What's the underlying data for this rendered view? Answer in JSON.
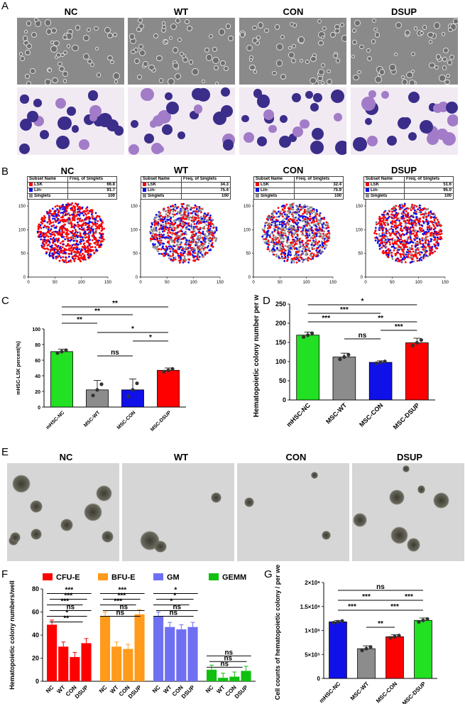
{
  "panel_labels": {
    "A": "A",
    "B": "B",
    "C": "C",
    "D": "D",
    "E": "E",
    "F": "F",
    "G": "G"
  },
  "conditions": [
    "NC",
    "WT",
    "CON",
    "DSUP"
  ],
  "colors": {
    "red": "#ff0000",
    "blue": "#1010e8",
    "gray": "#8c8c8c",
    "green": "#22e022",
    "orange": "#ff9a1a",
    "lavender": "#6f6ff2",
    "gemm_green": "#10c010"
  },
  "flow_tables": [
    {
      "header": [
        "Subset Name",
        "Freq. of Singlets"
      ],
      "rows": [
        [
          "LSK",
          "66.8"
        ],
        [
          "Lin-",
          "91.7"
        ],
        [
          "Singlets",
          "100"
        ]
      ]
    },
    {
      "header": [
        "Subset Name",
        "Freq. of Singlets"
      ],
      "rows": [
        [
          "LSK",
          "34.3"
        ],
        [
          "Lin-",
          "75.4"
        ],
        [
          "Singlets",
          "100"
        ]
      ]
    },
    {
      "header": [
        "Subset Name",
        "Freq. of Singlets"
      ],
      "rows": [
        [
          "LSK",
          "32.4"
        ],
        [
          "Lin-",
          "75.9"
        ],
        [
          "Singlets",
          "100"
        ]
      ]
    },
    {
      "header": [
        "Subset Name",
        "Freq. of Singlets"
      ],
      "rows": [
        [
          "LSK",
          "51.6"
        ],
        [
          "Lin-",
          "95.0"
        ],
        [
          "Singlets",
          "100"
        ]
      ]
    }
  ],
  "chart_data": [
    {
      "type": "bar",
      "panel": "C",
      "categories": [
        "mHSC-NC",
        "MSC-WT",
        "MSC-CON",
        "MSC-DSUP"
      ],
      "values": [
        71,
        22,
        22,
        47
      ],
      "errors": [
        3,
        12,
        14,
        3
      ],
      "ylabel": "mHSC-LSK percent(%)",
      "ylim": [
        0,
        100
      ],
      "yticks": [
        "0",
        "20",
        "40",
        "60",
        "80",
        "100"
      ],
      "significance": [
        "**",
        "**",
        "**",
        "*",
        "*",
        "ns"
      ]
    },
    {
      "type": "bar",
      "panel": "D",
      "categories": [
        "mHSC-NC",
        "MSC-WT",
        "MSC-CON",
        "MSC-DSUP"
      ],
      "values": [
        169,
        112,
        98,
        149
      ],
      "errors": [
        8,
        10,
        4,
        12
      ],
      "ylabel": "Hematopoietic colony number per well",
      "ylim": [
        0,
        250
      ],
      "yticks": [
        "0",
        "50",
        "100",
        "150",
        "200",
        "250"
      ],
      "significance": [
        "*",
        "***",
        "***",
        "**",
        "***",
        "ns"
      ]
    },
    {
      "type": "bar",
      "panel": "F",
      "ylabel": "Hematopoietic colony numbers/well",
      "ylim": [
        0,
        80
      ],
      "yticks": [
        "0",
        "20",
        "40",
        "60",
        "80"
      ],
      "groups": [
        "CFU-E",
        "BFU-E",
        "GM",
        "GEMM"
      ],
      "categories": [
        "NC",
        "WT",
        "CON",
        "DSUP"
      ],
      "series": [
        {
          "name": "CFU-E",
          "values": [
            49,
            30,
            21,
            33
          ]
        },
        {
          "name": "BFU-E",
          "values": [
            56,
            30,
            28,
            58
          ]
        },
        {
          "name": "GM",
          "values": [
            56,
            47,
            45,
            47
          ]
        },
        {
          "name": "GEMM",
          "values": [
            10,
            3,
            4,
            9
          ]
        }
      ],
      "significance": [
        [
          "***",
          "***",
          "***",
          "ns",
          "*",
          "**"
        ],
        [
          "***",
          "***",
          "***",
          "ns",
          "ns"
        ],
        [
          "*",
          "*",
          "*",
          "ns",
          "ns"
        ],
        [
          "ns",
          "ns",
          "ns"
        ]
      ]
    },
    {
      "type": "bar",
      "panel": "G",
      "categories": [
        "mHSC-NC",
        "MSC-WT",
        "MSC-CON",
        "MSC-DSUP"
      ],
      "values": [
        1180000,
        620000,
        870000,
        1210000
      ],
      "errors": [
        30000,
        60000,
        40000,
        50000
      ],
      "ylabel": "Cell counts of hematopoietic colony / per well",
      "ylim": [
        0,
        2000000
      ],
      "yticks": [
        "0",
        "5×10⁵",
        "1×10⁶",
        "1.5×10⁶",
        "2×10⁶"
      ],
      "significance": [
        "ns",
        "***",
        "***",
        "***",
        "***",
        "**"
      ]
    }
  ],
  "tsne_axis_ticks": {
    "x": [
      "0",
      "50",
      "100",
      "150"
    ],
    "y": [
      "0",
      "50",
      "100",
      "150"
    ]
  }
}
